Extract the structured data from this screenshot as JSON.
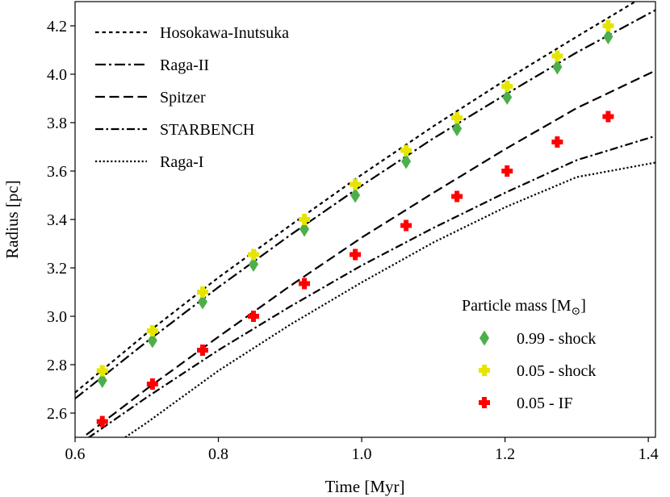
{
  "chart_data": {
    "type": "line",
    "title": "",
    "xlabel": "Time [Myr]",
    "ylabel": "Radius [pc]",
    "xlim": [
      0.6,
      1.41
    ],
    "ylim": [
      2.5,
      4.3
    ],
    "xticks": [
      0.6,
      0.8,
      1.0,
      1.2,
      1.4
    ],
    "xtick_labels": [
      "0.6",
      "0.8",
      "1.0",
      "1.2",
      "1.4"
    ],
    "yticks": [
      2.6,
      2.8,
      3.0,
      3.2,
      3.4,
      3.6,
      3.8,
      4.0,
      4.2
    ],
    "ytick_labels": [
      "2.6",
      "2.8",
      "3.0",
      "3.2",
      "3.4",
      "3.6",
      "3.8",
      "4.0",
      "4.2"
    ],
    "grid": false,
    "legend_position": "top-left",
    "series": [
      {
        "name": "Hosokawa-Inutsuka",
        "style": "dotted-short",
        "color": "#000000",
        "x": [
          0.6,
          0.7,
          0.8,
          0.9,
          1.0,
          1.1,
          1.2,
          1.3,
          1.41
        ],
        "y": [
          2.685,
          2.93,
          3.16,
          3.375,
          3.585,
          3.785,
          3.975,
          4.155,
          4.35
        ]
      },
      {
        "name": "Raga-II",
        "style": "dashdot-long",
        "color": "#000000",
        "x": [
          0.6,
          0.7,
          0.8,
          0.9,
          1.0,
          1.1,
          1.2,
          1.3,
          1.41
        ],
        "y": [
          2.66,
          2.895,
          3.12,
          3.335,
          3.54,
          3.735,
          3.915,
          4.09,
          4.265
        ]
      },
      {
        "name": "Spitzer",
        "style": "dashed",
        "color": "#000000",
        "x": [
          0.6,
          0.7,
          0.8,
          0.9,
          1.0,
          1.1,
          1.2,
          1.3,
          1.41
        ],
        "y": [
          2.475,
          2.7,
          2.915,
          3.125,
          3.325,
          3.51,
          3.69,
          3.86,
          4.015
        ]
      },
      {
        "name": "STARBENCH",
        "style": "dashdot",
        "color": "#000000",
        "x": [
          0.6,
          0.7,
          0.8,
          0.9,
          1.0,
          1.1,
          1.2,
          1.3,
          1.41
        ],
        "y": [
          2.46,
          2.665,
          2.86,
          3.04,
          3.21,
          3.365,
          3.51,
          3.645,
          3.745
        ]
      },
      {
        "name": "Raga-I",
        "style": "dotted",
        "color": "#000000",
        "x": [
          0.67,
          0.7,
          0.8,
          0.9,
          1.0,
          1.1,
          1.2,
          1.3,
          1.41
        ],
        "y": [
          2.5,
          2.56,
          2.775,
          2.965,
          3.14,
          3.305,
          3.45,
          3.575,
          3.635
        ]
      }
    ],
    "scatter_title": "Particle mass [M",
    "scatter_title_symbol": "⊙",
    "scatter_title_close": "]",
    "scatter": [
      {
        "name": "0.99 - shock",
        "marker": "diamond",
        "color": "#4daf4a",
        "x": [
          0.638,
          0.708,
          0.778,
          0.849,
          0.92,
          0.991,
          1.062,
          1.133,
          1.203,
          1.273,
          1.344
        ],
        "y": [
          2.735,
          2.9,
          3.06,
          3.215,
          3.36,
          3.5,
          3.64,
          3.775,
          3.905,
          4.03,
          4.155
        ]
      },
      {
        "name": "0.05 - shock",
        "marker": "plus",
        "color": "#e5e500",
        "x": [
          0.638,
          0.708,
          0.778,
          0.849,
          0.92,
          0.991,
          1.062,
          1.133,
          1.203,
          1.273,
          1.344
        ],
        "y": [
          2.775,
          2.94,
          3.1,
          3.255,
          3.4,
          3.545,
          3.685,
          3.82,
          3.95,
          4.075,
          4.2
        ]
      },
      {
        "name": "0.05 - IF",
        "marker": "plus",
        "color": "#ff0000",
        "x": [
          0.638,
          0.708,
          0.778,
          0.849,
          0.92,
          0.991,
          1.062,
          1.133,
          1.203,
          1.273,
          1.344
        ],
        "y": [
          2.565,
          2.72,
          2.86,
          3.0,
          3.135,
          3.255,
          3.375,
          3.495,
          3.6,
          3.72,
          3.825
        ]
      }
    ]
  }
}
